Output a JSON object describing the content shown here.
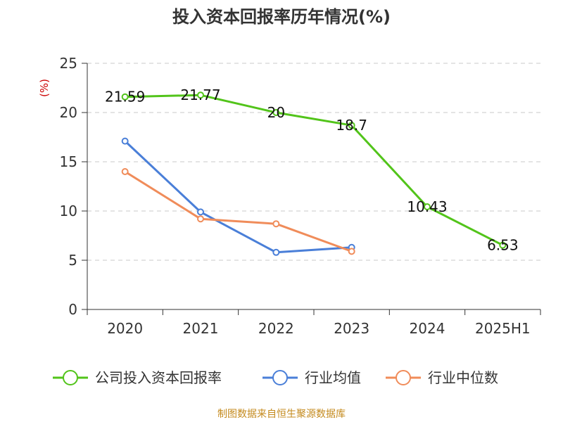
{
  "chart_data": {
    "type": "line",
    "title": "投入资本回报率历年情况(%)",
    "y_unit": "(%)",
    "categories": [
      "2020",
      "2021",
      "2022",
      "2023",
      "2024",
      "2025H1"
    ],
    "ylim": [
      0,
      25
    ],
    "y_ticks": [
      0,
      5,
      10,
      15,
      20,
      25
    ],
    "grid": true,
    "legend_position": "bottom",
    "series": [
      {
        "name": "公司投入资本回报率",
        "color": "#52c41a",
        "values": [
          21.59,
          21.77,
          20,
          18.7,
          10.43,
          6.53
        ],
        "labels": [
          "21.59",
          "21.77",
          "20",
          "18.7",
          "10.43",
          "6.53"
        ]
      },
      {
        "name": "行业均值",
        "color": "#4a7fd8",
        "values": [
          17.1,
          9.9,
          5.8,
          6.3,
          null,
          null
        ]
      },
      {
        "name": "行业中位数",
        "color": "#f08c5a",
        "values": [
          14.0,
          9.2,
          8.7,
          5.9,
          null,
          null
        ]
      }
    ],
    "source": "制图数据来自恒生聚源数据库"
  }
}
